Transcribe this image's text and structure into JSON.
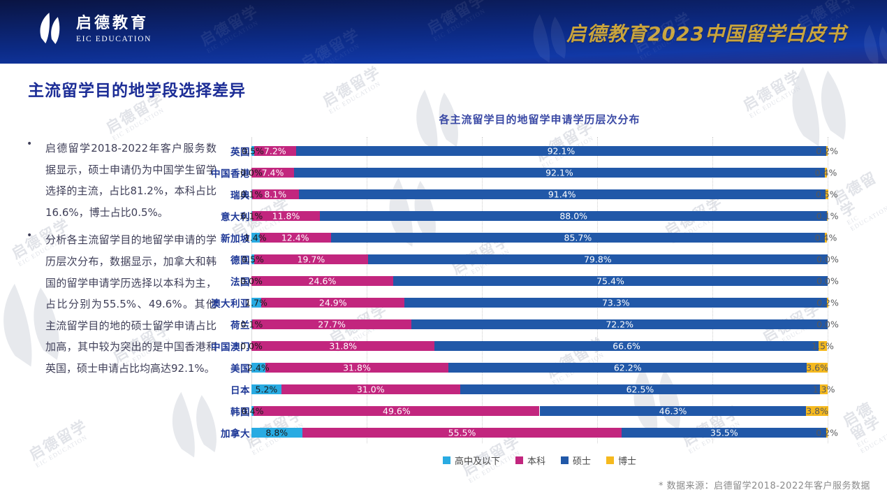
{
  "header": {
    "logo_cn": "启德教育",
    "logo_en": "EIC EDUCATION",
    "title": "启德教育2023中国留学白皮书"
  },
  "page_title": "主流留学目的地学段选择差异",
  "bullet_char": "•",
  "bullets": [
    "启德留学2018-2022年客户服务数据显示，硕士申请仍为中国学生留学选择的主流，占比81.2%，本科占比16.6%，博士占比0.5%。",
    "分析各主流留学目的地留学申请的学历层次分布，数据显示，加拿大和韩国的留学申请学历选择以本科为主，占比分别为55.5%、49.6%。其他主流留学目的地的硕士留学申请占比加高，其中较为突出的是中国香港和英国，硕士申请占比均高达92.1%。"
  ],
  "chart_data": {
    "type": "bar",
    "orientation": "horizontal",
    "stacked": true,
    "title": "各主流留学目的地留学申请学历层次分布",
    "categories": [
      "英国",
      "中国香港",
      "瑞典",
      "意大利",
      "新加坡",
      "德国",
      "法国",
      "澳大利亚",
      "荷兰",
      "中国澳门",
      "美国",
      "日本",
      "韩国",
      "加拿大"
    ],
    "series": [
      {
        "name": "高中及以下",
        "key": "high-school",
        "color": "#29abe2",
        "label_color": "#1a1a1a",
        "values": [
          0.5,
          0.0,
          0.1,
          0.1,
          1.4,
          0.5,
          0.0,
          1.7,
          0.1,
          0.0,
          2.4,
          5.2,
          0.4,
          8.8
        ]
      },
      {
        "name": "本科",
        "key": "bachelor",
        "color": "#c2267e",
        "label_color": "#ffffff",
        "values": [
          7.2,
          7.4,
          8.1,
          11.8,
          12.4,
          19.7,
          24.6,
          24.9,
          27.7,
          31.8,
          31.8,
          31.0,
          49.6,
          55.5
        ]
      },
      {
        "name": "硕士",
        "key": "master",
        "color": "#2158a8",
        "label_color": "#ffffff",
        "values": [
          92.1,
          92.1,
          91.4,
          88.0,
          85.7,
          79.8,
          75.4,
          73.3,
          72.2,
          66.6,
          62.2,
          62.5,
          46.3,
          35.5
        ]
      },
      {
        "name": "博士",
        "key": "doctor",
        "color": "#f5b91e",
        "label_color": "#58595b",
        "values": [
          0.2,
          0.4,
          0.5,
          0.1,
          0.4,
          0.0,
          0.0,
          0.2,
          0.0,
          1.5,
          3.6,
          1.3,
          3.8,
          0.2
        ]
      }
    ],
    "xlim": [
      0,
      100
    ],
    "gridline_step_pct": 20,
    "grid": true,
    "legend_position": "bottom"
  },
  "footnote": "* 数据来源：启德留学2018-2022年客户服务数据",
  "watermark": {
    "cn": "启德留学",
    "en": "EIC EDUCATION"
  }
}
